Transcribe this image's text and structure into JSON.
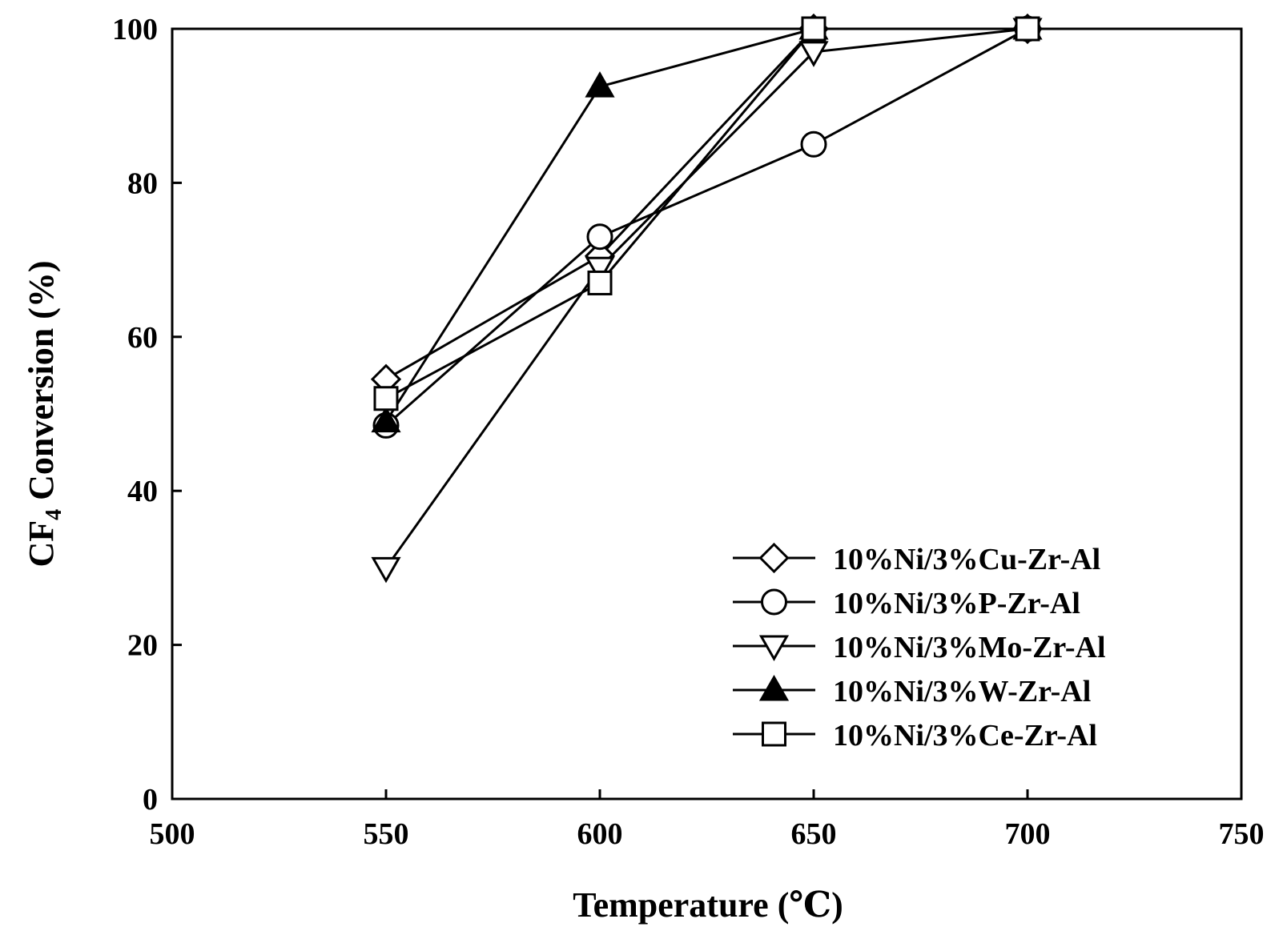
{
  "chart_data": {
    "type": "line",
    "xlabel": "Temperature (℃)",
    "ylabel": {
      "main": "CF",
      "sub": "4",
      "rest": " Conversion (%)"
    },
    "xlim": [
      500,
      750
    ],
    "ylim": [
      0,
      100
    ],
    "xticks": [
      "500",
      "550",
      "600",
      "650",
      "700",
      "750"
    ],
    "yticks": [
      "0",
      "20",
      "40",
      "60",
      "80",
      "100"
    ],
    "grid": false,
    "legend_position": "bottom-right",
    "x": [
      550,
      600,
      650,
      700
    ],
    "series": [
      {
        "name": "10%Ni/3%Cu-Zr-Al",
        "marker": "diamond",
        "filled": false,
        "values": [
          54.5,
          70.5,
          100,
          100
        ]
      },
      {
        "name": "10%Ni/3%P-Zr-Al",
        "marker": "circle",
        "filled": false,
        "values": [
          48.5,
          73,
          85,
          100
        ]
      },
      {
        "name": "10%Ni/3%Mo-Zr-Al",
        "marker": "triangle-down",
        "filled": false,
        "values": [
          30,
          69,
          97,
          100
        ]
      },
      {
        "name": "10%Ni/3%W-Zr-Al",
        "marker": "triangle-up",
        "filled": true,
        "values": [
          49,
          92.5,
          100,
          100
        ]
      },
      {
        "name": "10%Ni/3%Ce-Zr-Al",
        "marker": "square",
        "filled": false,
        "values": [
          52,
          67,
          100,
          100
        ]
      }
    ]
  }
}
